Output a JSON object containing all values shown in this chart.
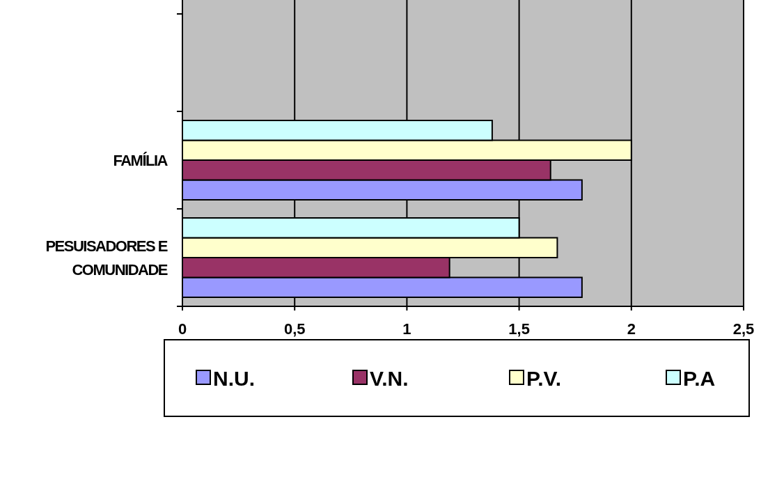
{
  "chart_data": {
    "type": "bar",
    "orientation": "horizontal",
    "categories": [
      null,
      "FAMÍLIA",
      "PESUISADORES E COMUNIDADE"
    ],
    "series": [
      {
        "name": "N.U.",
        "color": "#9999ff",
        "values": [
          null,
          1.78,
          1.78
        ]
      },
      {
        "name": "V.N.",
        "color": "#993366",
        "values": [
          null,
          1.64,
          1.19
        ]
      },
      {
        "name": "P.V.",
        "color": "#ffffcc",
        "values": [
          null,
          2.0,
          1.67
        ]
      },
      {
        "name": "P.A",
        "color": "#ccffff",
        "values": [
          null,
          1.38,
          1.5
        ]
      }
    ],
    "xlim": [
      0,
      2.5
    ],
    "xticks": [
      0,
      {
        "value": 0.5,
        "label": "0,5"
      },
      1,
      {
        "value": 1.5,
        "label": "1,5"
      },
      2,
      {
        "value": 2.5,
        "label": "2,5"
      }
    ],
    "grid": "x",
    "legend": "bottom"
  }
}
